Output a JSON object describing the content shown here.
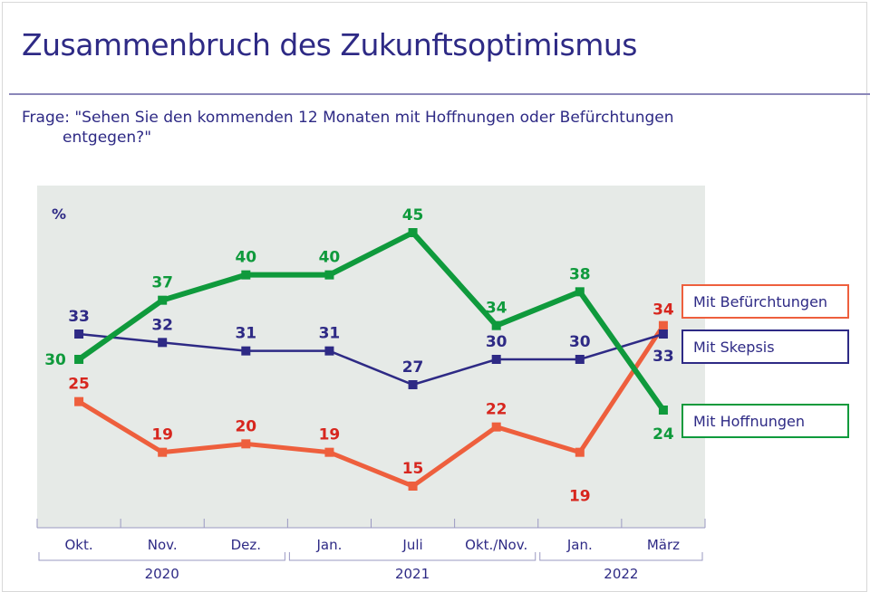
{
  "title": "Zusammenbruch des Zukunftsoptimismus",
  "question_line1": "Frage: \"Sehen Sie den kommenden 12 Monaten mit Hoffnungen oder Befürchtungen",
  "question_line2": "entgegen?\"",
  "colors": {
    "hoffnungen": "#0f9a3c",
    "skepsis": "#2e2a85",
    "befuerchtungen": "#ee5f3d",
    "befuerchtungen_label": "#d7261e",
    "plot_bg": "#e6eae7"
  },
  "chart_data": {
    "type": "line",
    "title": "Zusammenbruch des Zukunftsoptimismus",
    "ylabel": "%",
    "xlabel": "",
    "categories": [
      "Okt.",
      "Nov.",
      "Dez.",
      "Jan.",
      "Juli",
      "Okt./Nov.",
      "Jan.",
      "März"
    ],
    "year_groups": [
      {
        "label": "2020",
        "span": [
          0,
          2
        ]
      },
      {
        "label": "2021",
        "span": [
          3,
          5
        ]
      },
      {
        "label": "2022",
        "span": [
          6,
          7
        ]
      }
    ],
    "series": [
      {
        "name": "Mit Befürchtungen",
        "key": "befuerchtungen",
        "values": [
          25,
          19,
          20,
          19,
          15,
          22,
          19,
          34
        ]
      },
      {
        "name": "Mit Skepsis",
        "key": "skepsis",
        "values": [
          33,
          32,
          31,
          31,
          27,
          30,
          30,
          33
        ]
      },
      {
        "name": "Mit Hoffnungen",
        "key": "hoffnungen",
        "values": [
          30,
          37,
          40,
          40,
          45,
          34,
          38,
          24
        ]
      }
    ],
    "ylim": [
      10,
      50
    ],
    "grid": false,
    "legend": "right"
  }
}
